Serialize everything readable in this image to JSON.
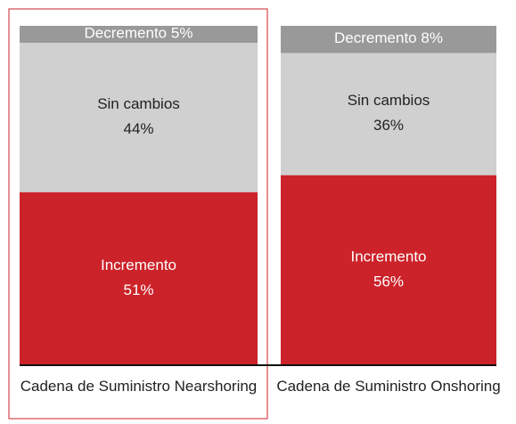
{
  "chart_data": {
    "type": "stacked_bar",
    "categories": [
      "Cadena de Suministro Nearshoring",
      "Cadena de Suministro Onshoring"
    ],
    "series": [
      {
        "name": "Incremento",
        "color": "#cc2229",
        "values": [
          51,
          56
        ],
        "value_labels": [
          "51%",
          "56%"
        ]
      },
      {
        "name": "Sin cambios",
        "color": "#d0d0d0",
        "values": [
          44,
          36
        ],
        "value_labels": [
          "44%",
          "36%"
        ]
      },
      {
        "name": "Decremento",
        "color": "#999999",
        "values": [
          5,
          8
        ],
        "value_labels": [
          "5%",
          "8%"
        ]
      }
    ],
    "highlight_color": "#cc2229"
  }
}
